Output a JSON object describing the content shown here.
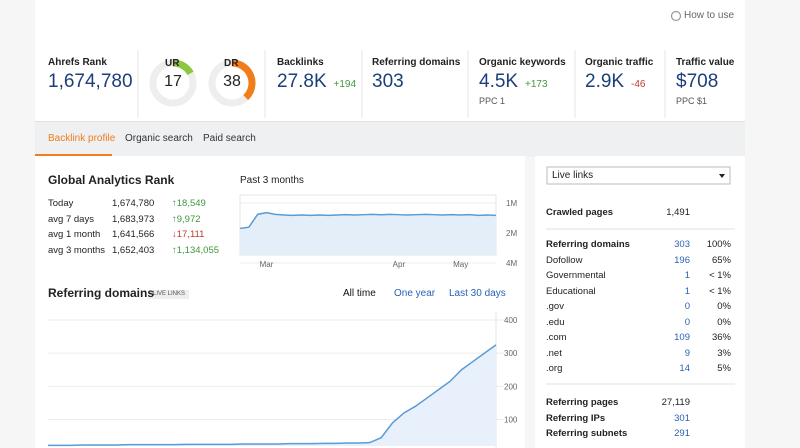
{
  "help": "How to use",
  "metrics": [
    {
      "label": "Ahrefs Rank",
      "value": "1,674,780"
    },
    {
      "label": "UR",
      "value": 17,
      "color": "#8dc63f"
    },
    {
      "label": "DR",
      "value": 38,
      "color": "#f07d19"
    },
    {
      "label": "Backlinks",
      "value": "27.8K",
      "change": "+194"
    },
    {
      "label": "Referring domains",
      "value": "303"
    },
    {
      "label": "Organic keywords",
      "value": "4.5K",
      "change": "+173",
      "sub": "PPC 1"
    },
    {
      "label": "Organic traffic",
      "value": "2.9K",
      "change": "-46"
    },
    {
      "label": "Traffic value",
      "value": "$708",
      "sub": "PPC $1"
    }
  ],
  "tabs": [
    "Backlink profile",
    "Organic search",
    "Paid search"
  ],
  "rank": {
    "title": "Global Analytics Rank",
    "rows": [
      [
        "Today",
        "1,674,780",
        "↑18,549"
      ],
      [
        "avg 7 days",
        "1,683,973",
        "↑9,972"
      ],
      [
        "avg 1 month",
        "1,641,566",
        "↓17,111"
      ],
      [
        "avg 3 months",
        "1,652,403",
        "↑1,134,055"
      ]
    ],
    "chart": {
      "type": "line",
      "title": "Past 3 months",
      "categories": [
        null,
        null,
        null,
        "Mar",
        null,
        null,
        null,
        null,
        null,
        null,
        null,
        null,
        null,
        null,
        null,
        null,
        null,
        null,
        "Apr",
        null,
        null,
        null,
        null,
        null,
        null,
        "May",
        null,
        null,
        null,
        null
      ],
      "values": [
        1800000,
        1750000,
        1300000,
        1250000,
        1300000,
        1320000,
        1330000,
        1320000,
        1330000,
        1320000,
        1330000,
        1320000,
        1310000,
        1320000,
        1310000,
        1300000,
        1310000,
        1300000,
        1310000,
        1320000,
        1310000,
        1300000,
        1310000,
        1320000,
        1310000,
        1320000,
        1310000,
        1330000,
        1320000,
        1330000
      ],
      "ylim": [
        1000000,
        4000000
      ],
      "log_scale": true,
      "inverted": true,
      "yticks": [
        {
          "value": 1000000,
          "label": "1M"
        },
        {
          "value": 2000000,
          "label": "2M"
        },
        {
          "value": 4000000,
          "label": "4M"
        }
      ],
      "color": "#5b9bd5"
    }
  },
  "referring": {
    "title": "Referring domains",
    "badge": "LIVE LINKS",
    "ranges": [
      "All time",
      "One year",
      "Last 30 days"
    ],
    "chart": {
      "type": "line",
      "values": [
        22,
        22,
        22,
        23,
        23,
        23,
        23,
        24,
        24,
        24,
        24,
        24,
        25,
        25,
        25,
        25,
        25,
        26,
        26,
        26,
        26,
        27,
        27,
        27,
        28,
        28,
        29,
        29,
        30,
        45,
        90,
        120,
        140,
        165,
        190,
        215,
        250,
        275,
        300,
        325
      ],
      "ylim": [
        20,
        400
      ],
      "yticks": [
        100,
        200,
        300,
        400
      ],
      "color": "#5b9bd5"
    }
  },
  "side": {
    "dropdown": "Live links",
    "crawled": {
      "label": "Crawled pages",
      "value": "1,491"
    },
    "domains": [
      {
        "label": "Referring domains",
        "value": "303",
        "pct": "100%",
        "bold": true
      },
      {
        "label": "Dofollow",
        "value": "196",
        "pct": "65%"
      },
      {
        "label": "Governmental",
        "value": "1",
        "pct": "< 1%"
      },
      {
        "label": "Educational",
        "value": "1",
        "pct": "< 1%"
      },
      {
        "label": ".gov",
        "value": "0",
        "pct": "0%"
      },
      {
        "label": ".edu",
        "value": "0",
        "pct": "0%"
      },
      {
        "label": ".com",
        "value": "109",
        "pct": "36%"
      },
      {
        "label": ".net",
        "value": "9",
        "pct": "3%"
      },
      {
        "label": ".org",
        "value": "14",
        "pct": "5%"
      }
    ],
    "bottom": [
      {
        "label": "Referring pages",
        "value": "27,119",
        "color": "#222"
      },
      {
        "label": "Referring IPs",
        "value": "301",
        "color": "#2a62b6"
      },
      {
        "label": "Referring subnets",
        "value": "291",
        "color": "#2a62b6"
      }
    ]
  }
}
